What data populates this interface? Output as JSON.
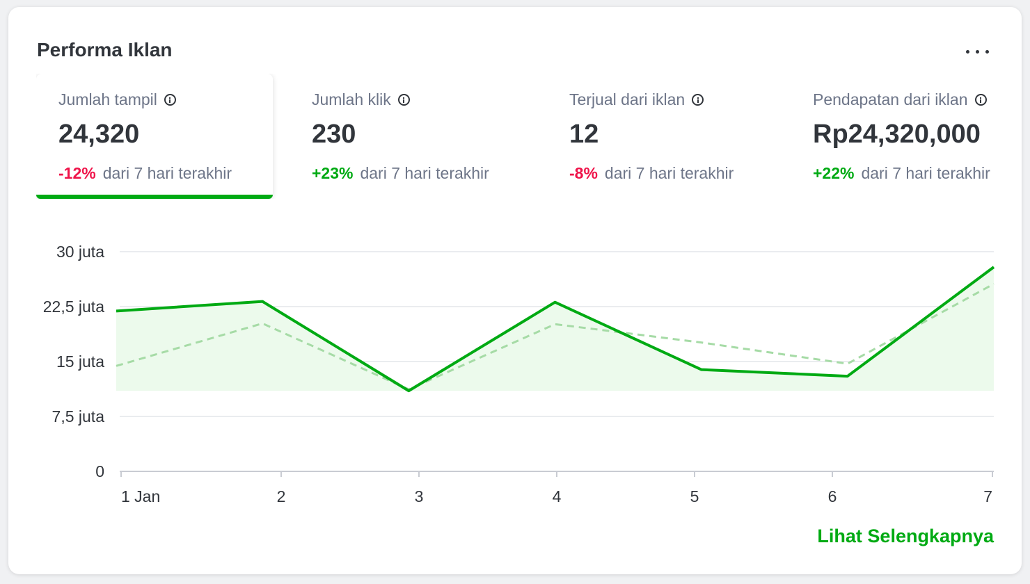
{
  "card": {
    "title": "Performa Iklan",
    "more_icon": "more-horizontal-icon",
    "see_more": "Lihat Selengkapnya"
  },
  "stats": [
    {
      "label": "Jumlah tampil",
      "value": "24,320",
      "change": "-12%",
      "change_type": "negative",
      "period": "dari 7 hari terakhir",
      "active": true
    },
    {
      "label": "Jumlah klik",
      "value": "230",
      "change": "+23%",
      "change_type": "positive",
      "period": "dari 7 hari terakhir",
      "active": false
    },
    {
      "label": "Terjual dari iklan",
      "value": "12",
      "change": "-8%",
      "change_type": "negative",
      "period": "dari 7 hari terakhir",
      "active": false
    },
    {
      "label": "Pendapatan dari iklan",
      "value": "Rp24,320,000",
      "change": "+22%",
      "change_type": "positive",
      "period": "dari 7 hari terakhir",
      "active": false
    }
  ],
  "colors": {
    "primary": "#00aa13",
    "negative": "#ef144a",
    "text": "#31353b",
    "muted": "#6d7588",
    "comparison": "#a6dba6",
    "area_fill": "#ecfaec"
  },
  "chart_data": {
    "type": "line",
    "categories": [
      "1 Jan",
      "2",
      "3",
      "4",
      "5",
      "6",
      "7"
    ],
    "ytick_labels": [
      "0",
      "7,5 juta",
      "15 juta",
      "22,5 juta",
      "30 juta"
    ],
    "yticks": [
      0,
      7.5,
      15,
      22.5,
      30
    ],
    "ylim": [
      0,
      30
    ],
    "series": [
      {
        "style": "solid",
        "values": [
          21.9,
          23.2,
          11.0,
          23.1,
          13.9,
          13.0,
          27.9
        ]
      },
      {
        "style": "dashed",
        "values": [
          14.4,
          20.2,
          11.2,
          20.1,
          17.6,
          14.7,
          25.6
        ]
      }
    ],
    "area_baseline": 11.0,
    "grid": true,
    "legend": false
  }
}
